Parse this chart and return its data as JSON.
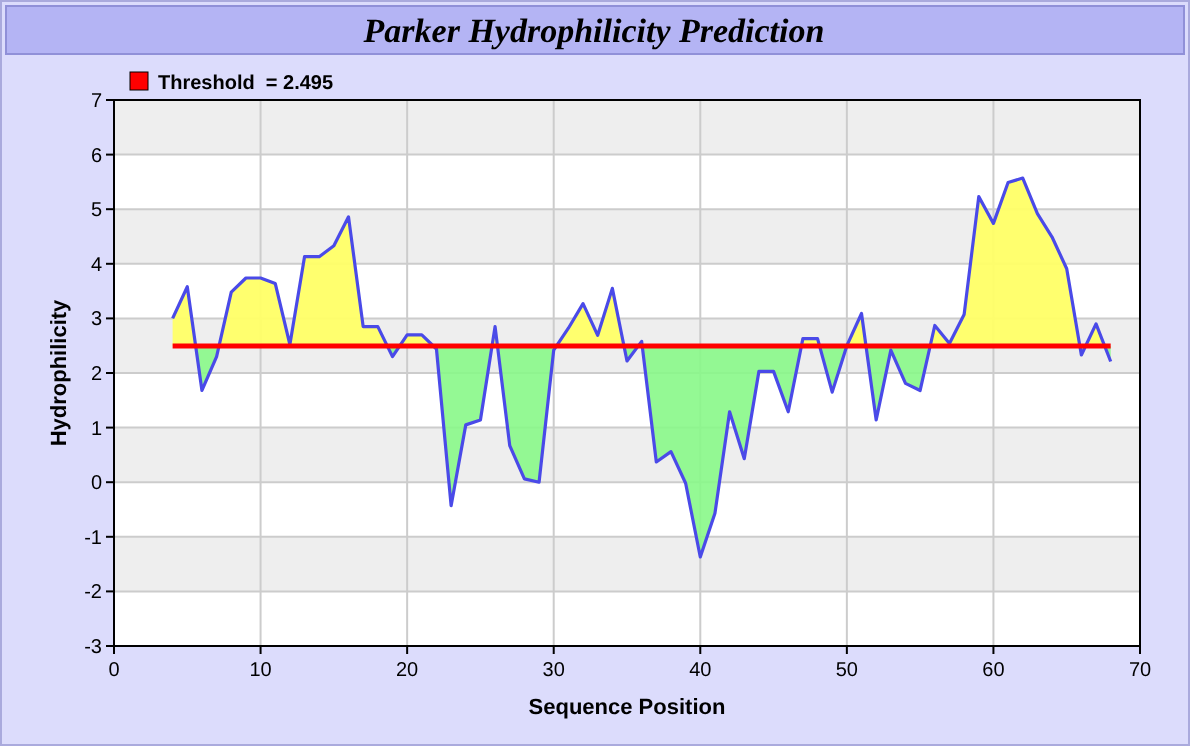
{
  "chart_data": {
    "type": "line",
    "title": "Parker Hydrophilicity Prediction",
    "xlabel": "Sequence Position",
    "ylabel": "Hydrophilicity",
    "x": [
      4,
      5,
      6,
      7,
      8,
      9,
      10,
      11,
      12,
      13,
      14,
      15,
      16,
      17,
      18,
      19,
      20,
      21,
      22,
      23,
      24,
      25,
      26,
      27,
      28,
      29,
      30,
      31,
      32,
      33,
      34,
      35,
      36,
      37,
      38,
      39,
      40,
      41,
      42,
      43,
      44,
      45,
      46,
      47,
      48,
      49,
      50,
      51,
      52,
      53,
      54,
      55,
      56,
      57,
      58,
      59,
      60,
      61,
      62,
      63,
      64,
      65,
      66,
      67,
      68
    ],
    "series": [
      {
        "color": "#4a4ae8",
        "values": [
          3.0,
          3.58,
          1.68,
          2.3,
          3.48,
          3.74,
          3.74,
          3.64,
          2.52,
          4.13,
          4.13,
          4.33,
          4.86,
          2.85,
          2.85,
          2.3,
          2.7,
          2.7,
          2.44,
          -0.43,
          1.05,
          1.14,
          2.85,
          0.67,
          0.06,
          0.0,
          2.42,
          2.82,
          3.27,
          2.69,
          3.55,
          2.22,
          2.58,
          0.37,
          0.56,
          -0.02,
          -1.37,
          -0.57,
          1.29,
          0.43,
          2.03,
          2.03,
          1.29,
          2.63,
          2.63,
          1.65,
          2.5,
          3.09,
          1.14,
          2.42,
          1.81,
          1.68,
          2.87,
          2.54,
          3.07,
          5.23,
          4.74,
          5.49,
          5.57,
          4.92,
          4.49,
          3.91,
          2.33,
          2.9,
          2.21
        ]
      }
    ],
    "xlim": [
      0,
      70
    ],
    "xticks": [
      0,
      10,
      20,
      30,
      40,
      50,
      60,
      70
    ],
    "ylim": [
      -3,
      7
    ],
    "yticks": [
      -3,
      -2,
      -1,
      0,
      1,
      2,
      3,
      4,
      5,
      6,
      7
    ],
    "ref_lines": [
      {
        "axis": "y",
        "value": 2.495,
        "label": "Threshold  = 2.495",
        "color": "#ff0000"
      }
    ],
    "grid": true,
    "legend": "top left"
  }
}
